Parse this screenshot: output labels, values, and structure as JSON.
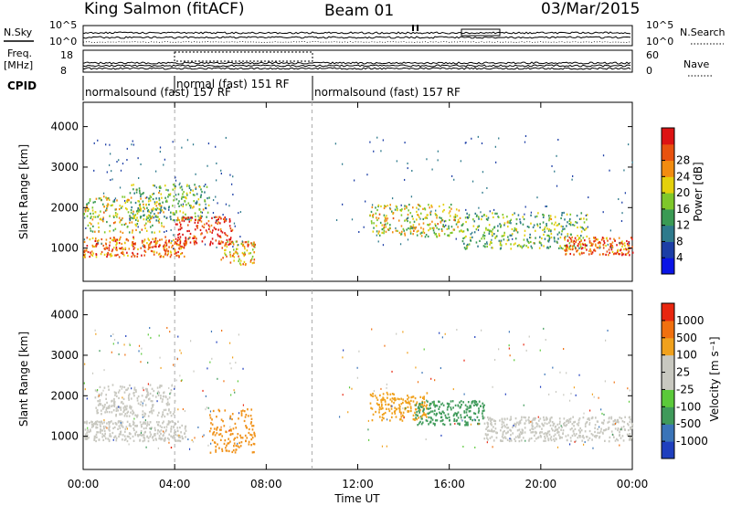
{
  "header": {
    "site": "King Salmon (fitACF)",
    "beam": "Beam 01",
    "date": "03/Mar/2015"
  },
  "top_panels": {
    "nsky_label": "N.Sky",
    "nsky_ticks": [
      "10^5",
      "10^0"
    ],
    "right_ticks": [
      "10^5",
      "10^0"
    ],
    "nsearch_label": "N.Search",
    "freq_label": "Freq.",
    "freq_unit": "[MHz]",
    "freq_ticks": [
      "18",
      "8"
    ],
    "nave_ticks": [
      "60",
      "0"
    ],
    "nave_label": "Nave",
    "cpid_label": "CPID",
    "cpid_segments": [
      {
        "label": "normalsound (fast) 157 RF",
        "start_h": 0.0,
        "end_h": 4.0
      },
      {
        "label": "normal (fast) 151 RF",
        "start_h": 4.0,
        "end_h": 10.0
      },
      {
        "label": "normalsound (fast) 157 RF",
        "start_h": 10.0,
        "end_h": 24.0
      }
    ]
  },
  "chart_data": [
    {
      "type": "heatmap",
      "panel": "power",
      "ylabel": "Slant Range [km]",
      "xlabel": "Time UT",
      "xlim": [
        0,
        24
      ],
      "ylim": [
        180,
        4600
      ],
      "yticks": [
        1000,
        2000,
        3000,
        4000
      ],
      "xticks": [
        "00:00",
        "04:00",
        "08:00",
        "12:00",
        "16:00",
        "20:00",
        "00:00"
      ],
      "colorbar": {
        "label": "Power [dB]",
        "ticks": [
          "4",
          "8",
          "12",
          "16",
          "20",
          "24",
          "28"
        ],
        "colors": [
          "#0a14e6",
          "#1c3ea6",
          "#2e7a8c",
          "#3a9a54",
          "#7ec72a",
          "#e4d00c",
          "#f28c10",
          "#e8520f",
          "#dd1313"
        ]
      },
      "scatter_regions": [
        {
          "t0": 0.0,
          "t1": 4.5,
          "r0": 800,
          "r1": 1300,
          "level": 7
        },
        {
          "t0": 0.0,
          "t1": 3.5,
          "r0": 1400,
          "r1": 2300,
          "level": 5
        },
        {
          "t0": 2.0,
          "t1": 5.5,
          "r0": 1700,
          "r1": 2600,
          "level": 4
        },
        {
          "t0": 4.0,
          "t1": 6.5,
          "r0": 1100,
          "r1": 1800,
          "level": 8
        },
        {
          "t0": 6.0,
          "t1": 7.5,
          "r0": 600,
          "r1": 1200,
          "level": 6
        },
        {
          "t0": 12.5,
          "t1": 16.5,
          "r0": 1300,
          "r1": 2100,
          "level": 5
        },
        {
          "t0": 16.5,
          "t1": 22.0,
          "r0": 1000,
          "r1": 1900,
          "level": 4
        },
        {
          "t0": 21.0,
          "t1": 24.0,
          "r0": 850,
          "r1": 1300,
          "level": 7
        }
      ]
    },
    {
      "type": "heatmap",
      "panel": "velocity",
      "ylabel": "Slant Range [km]",
      "xlabel": "Time UT",
      "xlim": [
        0,
        24
      ],
      "ylim": [
        180,
        4600
      ],
      "yticks": [
        1000,
        2000,
        3000,
        4000
      ],
      "xticks": [
        "00:00",
        "04:00",
        "08:00",
        "12:00",
        "16:00",
        "20:00",
        "00:00"
      ],
      "colorbar": {
        "label": "Velocity [m s⁻¹]",
        "ticks": [
          "1000",
          "500",
          "100",
          "25",
          "-25",
          "-100",
          "-500",
          "-1000"
        ],
        "colors": [
          "#1f3fbe",
          "#3a74b8",
          "#3f9a5a",
          "#5bc93a",
          "#c8c8c0",
          "#c8c8c0",
          "#f0a11d",
          "#f0700f",
          "#e8260f"
        ]
      },
      "scatter_regions": [
        {
          "t0": 0.0,
          "t1": 4.5,
          "r0": 900,
          "r1": 1400,
          "color": "#c8c8c0"
        },
        {
          "t0": 0.5,
          "t1": 4.0,
          "r0": 1500,
          "r1": 2300,
          "color": "#c8c8c0"
        },
        {
          "t0": 5.5,
          "t1": 7.5,
          "r0": 600,
          "r1": 1700,
          "color": "#f0921a"
        },
        {
          "t0": 12.5,
          "t1": 15.0,
          "r0": 1400,
          "r1": 2100,
          "color": "#f0a11d"
        },
        {
          "t0": 14.5,
          "t1": 17.5,
          "r0": 1300,
          "r1": 1900,
          "color": "#3f9a5a"
        },
        {
          "t0": 17.5,
          "t1": 24.0,
          "r0": 900,
          "r1": 1500,
          "color": "#c8c8c0"
        }
      ]
    }
  ]
}
